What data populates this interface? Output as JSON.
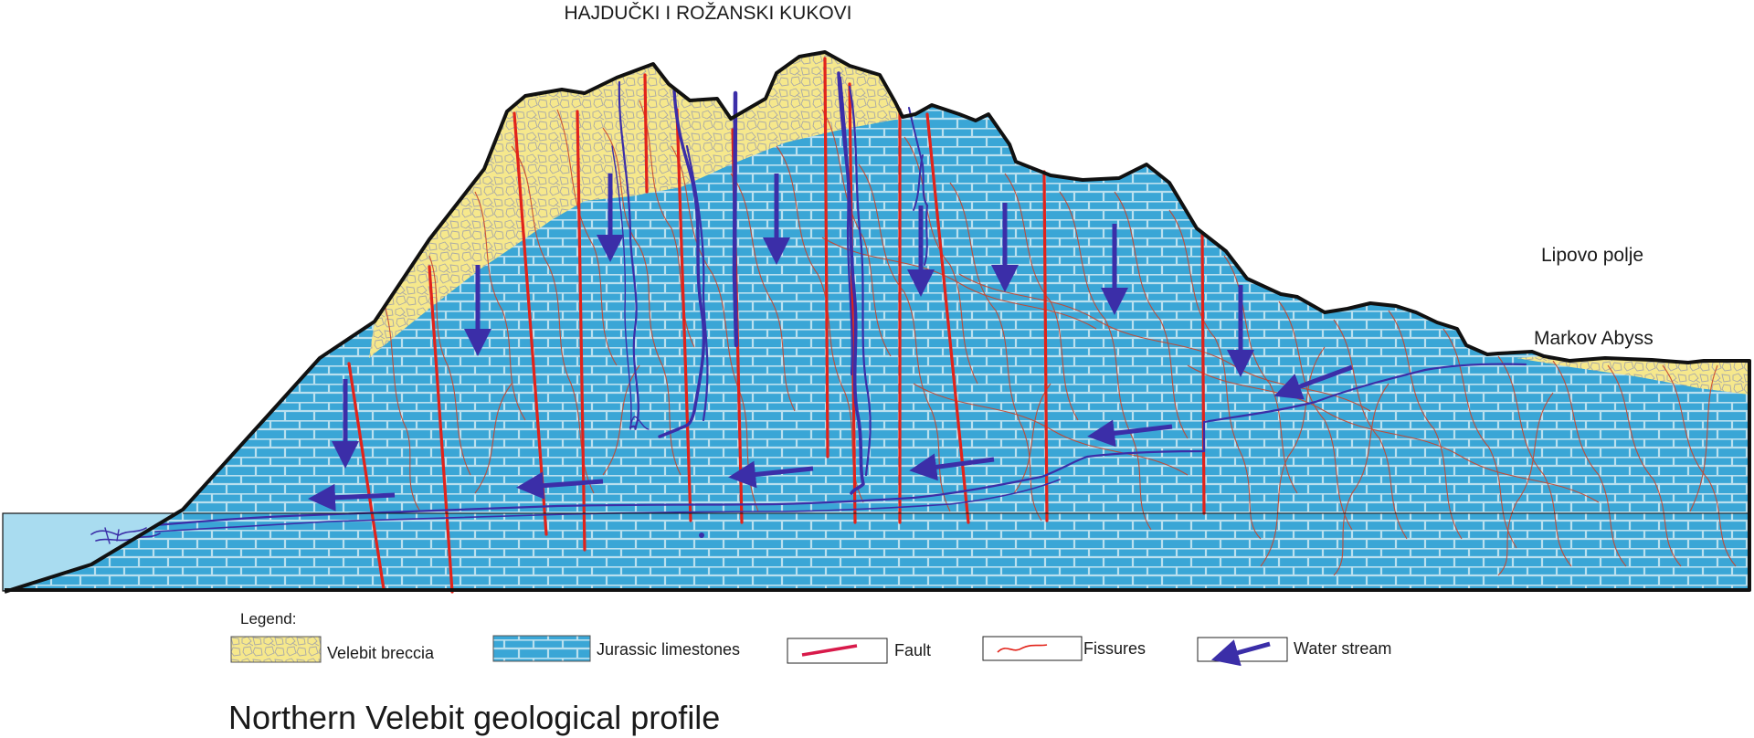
{
  "labels": {
    "peaks": "HAJDUČKI I ROŽANSKI KUKOVI",
    "polje": "Lipovo polje",
    "abyss": "Markov Abyss"
  },
  "legend": {
    "heading": "Legend:",
    "items": [
      {
        "label": "Velebit breccia",
        "icon": "breccia-swatch-icon"
      },
      {
        "label": "Jurassic limestones",
        "icon": "limestone-swatch-icon"
      },
      {
        "label": "Fault",
        "icon": "fault-line-icon"
      },
      {
        "label": "Fissures",
        "icon": "fissure-line-icon"
      },
      {
        "label": "Water stream",
        "icon": "water-arrow-icon"
      }
    ]
  },
  "caption": "Northern Velebit geological profile",
  "colors": {
    "limestone": "#3aa6d6",
    "limestone_joint": "#b9e0ef",
    "breccia": "#f6e88c",
    "breccia_cells": "#a8a8a8",
    "fault": "#e2231a",
    "fissure": "#c8442b",
    "water": "#3b2ea8",
    "sea": "#a9dcf0",
    "outline": "#111111"
  }
}
